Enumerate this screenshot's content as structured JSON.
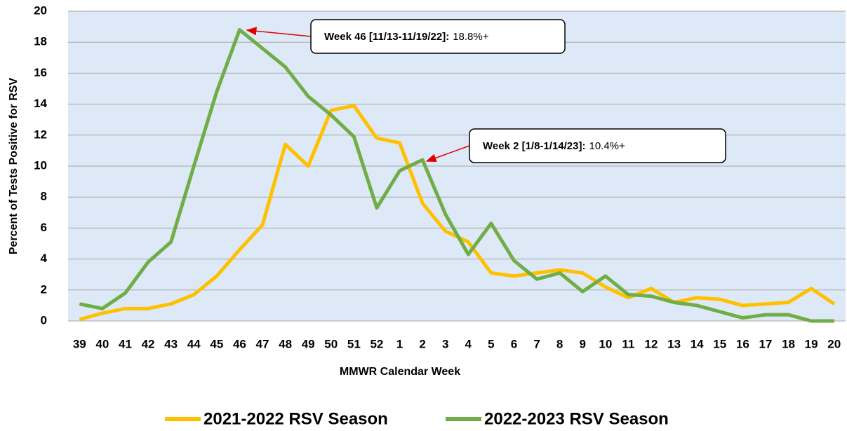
{
  "chart_data": {
    "type": "line",
    "x_label": "MMWR Calendar Week",
    "y_label": "Percent of Tests Positive for RSV",
    "categories": [
      "39",
      "40",
      "41",
      "42",
      "43",
      "44",
      "45",
      "46",
      "47",
      "48",
      "49",
      "50",
      "51",
      "52",
      "1",
      "2",
      "3",
      "4",
      "5",
      "6",
      "7",
      "8",
      "9",
      "10",
      "11",
      "12",
      "13",
      "14",
      "15",
      "16",
      "17",
      "18",
      "19",
      "20"
    ],
    "series": [
      {
        "name": "2021-2022 RSV Season",
        "color": "#ffc000",
        "values": [
          0.1,
          0.5,
          0.8,
          0.8,
          1.1,
          1.7,
          2.9,
          4.6,
          6.2,
          11.4,
          10.0,
          13.6,
          13.9,
          11.8,
          11.5,
          7.6,
          5.8,
          5.1,
          3.1,
          2.9,
          3.1,
          3.3,
          3.1,
          2.2,
          1.5,
          2.1,
          1.2,
          1.5,
          1.4,
          1.0,
          1.1,
          1.2,
          2.1,
          1.1
        ]
      },
      {
        "name": "2022-2023 RSV Season",
        "color": "#70ad47",
        "values": [
          1.1,
          0.8,
          1.8,
          3.8,
          5.1,
          10.0,
          14.8,
          18.8,
          17.6,
          16.4,
          14.5,
          13.3,
          11.9,
          7.3,
          9.7,
          10.4,
          6.9,
          4.3,
          6.3,
          3.9,
          2.7,
          3.1,
          1.9,
          2.9,
          1.7,
          1.6,
          1.2,
          1.0,
          0.6,
          0.2,
          0.4,
          0.4,
          0.0,
          0.0
        ]
      }
    ],
    "ylim": [
      0,
      20
    ],
    "yticks": [
      0,
      2,
      4,
      6,
      8,
      10,
      12,
      14,
      16,
      18,
      20
    ],
    "grid": true,
    "annotations": [
      {
        "label": "Week 46 [11/13-11/19/22]:",
        "text": "18.8%+"
      },
      {
        "label": "Week 2 [1/8-1/14/23]:",
        "text": "10.4%+"
      }
    ],
    "legend": "bottom"
  }
}
